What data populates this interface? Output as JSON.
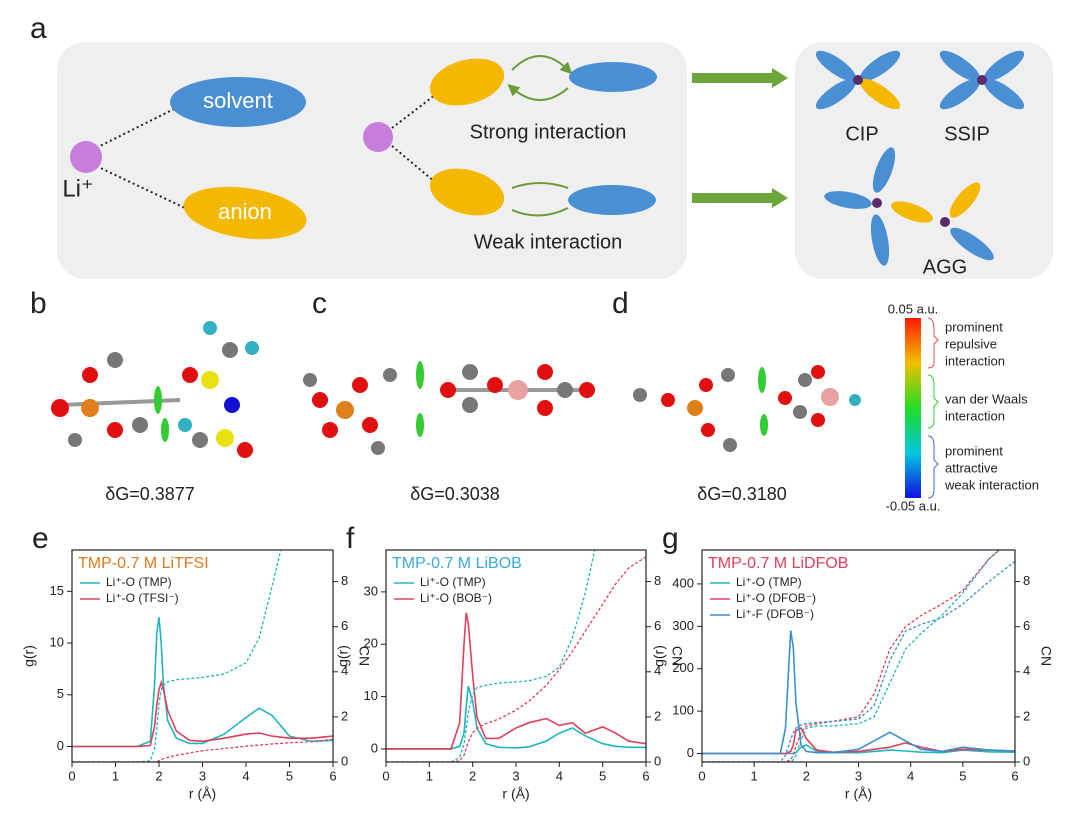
{
  "panel_a": {
    "letter": "a",
    "solvent": "solvent",
    "anion": "anion",
    "li": "Li⁺",
    "strong": "Strong interaction",
    "weak": "Weak interaction",
    "cip": "CIP",
    "ssip": "SSIP",
    "agg": "AGG"
  },
  "panels_bcd": [
    {
      "letter": "b",
      "dg": "δG=0.3877"
    },
    {
      "letter": "c",
      "dg": "δG=0.3038"
    },
    {
      "letter": "d",
      "dg": "δG=0.3180"
    }
  ],
  "colorbar": {
    "top": "0.05 a.u.",
    "bottom": "-0.05 a.u.",
    "repulsive": [
      "prominent",
      "repulsive",
      "interaction"
    ],
    "vdw": [
      "van der Waals",
      "interaction"
    ],
    "attractive": [
      "prominent",
      "attractive",
      "weak interaction"
    ]
  },
  "chart_data": [
    {
      "type": "line",
      "letter": "e",
      "title": "TMP-0.7 M LiTFSI",
      "title_color": "#e07a1f",
      "xlabel": "r (Å)",
      "ylabel": "g(r)",
      "y2label": "CN",
      "x": [
        0,
        1.5,
        1.8,
        1.9,
        1.95,
        2.0,
        2.05,
        2.1,
        2.2,
        2.4,
        2.7,
        3.0,
        3.5,
        4.0,
        4.3,
        4.6,
        5.0,
        5.5,
        6.0
      ],
      "xlim": [
        0,
        6
      ],
      "xticks": [
        0,
        1,
        2,
        3,
        4,
        5,
        6
      ],
      "ylim": [
        -1.5,
        19
      ],
      "yticks": [
        0,
        5,
        10,
        15
      ],
      "y2lim": [
        0,
        9.4
      ],
      "y2ticks": [
        0,
        2,
        4,
        6,
        8
      ],
      "series": [
        {
          "name": "Li⁺-O (TMP)",
          "color": "#1fb5c0",
          "values": [
            0,
            0,
            0.5,
            6,
            11,
            12.5,
            10,
            6,
            2.5,
            0.8,
            0.3,
            0.3,
            1.2,
            2.8,
            3.7,
            3,
            1,
            0.5,
            0.6
          ]
        },
        {
          "name": "Li⁺-O (TFSI⁻)",
          "color": "#e0405a",
          "values": [
            0,
            0,
            0.1,
            2,
            4,
            5.5,
            6.2,
            5.5,
            3.5,
            1.5,
            0.6,
            0.5,
            0.8,
            1.2,
            1.3,
            1,
            0.8,
            0.8,
            1.0
          ]
        },
        {
          "color": "#1fb5c0",
          "axis": "y2",
          "dashed": true,
          "values": [
            0,
            0,
            0.05,
            0.6,
            1.5,
            2.6,
            3.2,
            3.4,
            3.55,
            3.65,
            3.7,
            3.75,
            3.9,
            4.4,
            5.5,
            7.8,
            11,
            null,
            null
          ]
        },
        {
          "color": "#e0405a",
          "axis": "y2",
          "dashed": true,
          "values": [
            0,
            0,
            0,
            0,
            0.02,
            0.05,
            0.1,
            0.15,
            0.2,
            0.3,
            0.4,
            0.5,
            0.6,
            0.7,
            0.75,
            0.8,
            0.85,
            0.9,
            1.0
          ]
        }
      ]
    },
    {
      "type": "line",
      "letter": "f",
      "title": "TMP-0.7 M LiBOB",
      "title_color": "#3aa9dc",
      "xlabel": "r (Å)",
      "ylabel": "g(r)",
      "y2label": "CN",
      "x": [
        0,
        1.5,
        1.7,
        1.8,
        1.85,
        1.9,
        2.0,
        2.1,
        2.3,
        2.6,
        3.0,
        3.3,
        3.7,
        4.0,
        4.3,
        4.6,
        5.0,
        5.3,
        5.6,
        6.0
      ],
      "xlim": [
        0,
        6
      ],
      "xticks": [
        0,
        1,
        2,
        3,
        4,
        5,
        6
      ],
      "ylim": [
        -2.5,
        38
      ],
      "yticks": [
        0,
        10,
        20,
        30
      ],
      "y2lim": [
        0,
        9.4
      ],
      "y2ticks": [
        0,
        2,
        4,
        6,
        8
      ],
      "series": [
        {
          "name": "Li⁺-O (TMP)",
          "color": "#1fb5c0",
          "values": [
            0,
            0,
            0.5,
            3,
            8,
            12,
            9,
            4,
            1,
            0.3,
            0.2,
            0.4,
            1.5,
            3,
            4,
            2.5,
            1,
            0.5,
            0.3,
            0.3
          ]
        },
        {
          "name": "Li⁺-O (BOB⁻)",
          "color": "#e0405a",
          "values": [
            0,
            0,
            5,
            20,
            26,
            24,
            14,
            6,
            2,
            2,
            4,
            5,
            5.8,
            4.5,
            5,
            3,
            4.2,
            3,
            1.5,
            1
          ]
        },
        {
          "color": "#1fb5c0",
          "axis": "y2",
          "dashed": true,
          "values": [
            0,
            0,
            0.2,
            0.8,
            1.5,
            2.2,
            3.0,
            3.3,
            3.4,
            3.5,
            3.55,
            3.6,
            3.8,
            4.2,
            5.5,
            7.5,
            11,
            null,
            null,
            null
          ]
        },
        {
          "color": "#e0405a",
          "axis": "y2",
          "dashed": true,
          "values": [
            0,
            0,
            0.05,
            0.3,
            0.6,
            0.9,
            1.3,
            1.5,
            1.7,
            1.9,
            2.3,
            2.7,
            3.4,
            4.1,
            4.9,
            5.8,
            7,
            7.9,
            8.6,
            9.1
          ]
        }
      ]
    },
    {
      "type": "line",
      "letter": "g",
      "title": "TMP-0.7 M LiDFOB",
      "title_color": "#e0405a",
      "xlabel": "r (Å)",
      "ylabel": "g(r)",
      "y2label": "CN",
      "x": [
        0,
        1.5,
        1.6,
        1.7,
        1.75,
        1.8,
        1.9,
        2.0,
        2.2,
        2.5,
        3.0,
        3.3,
        3.6,
        3.9,
        4.2,
        4.6,
        5.0,
        5.5,
        6.0
      ],
      "xlim": [
        0,
        6
      ],
      "xticks": [
        0,
        1,
        2,
        3,
        4,
        5,
        6
      ],
      "ylim": [
        -20,
        480
      ],
      "yticks": [
        0,
        100,
        200,
        300,
        400
      ],
      "y2lim": [
        0,
        9.4
      ],
      "y2ticks": [
        0,
        2,
        4,
        6,
        8
      ],
      "series": [
        {
          "name": "Li⁺-O (TMP)",
          "color": "#1fb5c0",
          "values": [
            0,
            0,
            0,
            0,
            0,
            2,
            15,
            20,
            5,
            2,
            2,
            5,
            8,
            6,
            3,
            2,
            8,
            4,
            3
          ]
        },
        {
          "name": "Li⁺-O (DFOB⁻)",
          "color": "#e0405a",
          "values": [
            0,
            0,
            0,
            5,
            20,
            55,
            60,
            35,
            8,
            3,
            5,
            10,
            15,
            25,
            15,
            5,
            10,
            8,
            6
          ]
        },
        {
          "name": "Li⁺-F (DFOB⁻)",
          "color": "#3a8fd0",
          "values": [
            0,
            0,
            60,
            290,
            250,
            120,
            20,
            5,
            2,
            2,
            10,
            30,
            50,
            30,
            10,
            5,
            15,
            8,
            6
          ]
        },
        {
          "color": "#1fb5c0",
          "axis": "y2",
          "dashed": true,
          "values": [
            0,
            0,
            0,
            0,
            0.1,
            0.3,
            1,
            1.5,
            1.6,
            1.6,
            1.7,
            2,
            3.5,
            5,
            5.7,
            6.5,
            7.5,
            9,
            10
          ]
        },
        {
          "color": "#e0405a",
          "axis": "y2",
          "dashed": true,
          "values": [
            0,
            0,
            0,
            0.1,
            0.3,
            0.7,
            1.3,
            1.6,
            1.7,
            1.8,
            2,
            3,
            5,
            6,
            6.5,
            7,
            7.6,
            9,
            10
          ]
        },
        {
          "color": "#3a8fd0",
          "axis": "y2",
          "dashed": true,
          "values": [
            0,
            0,
            0.3,
            1.0,
            1.3,
            1.5,
            1.65,
            1.7,
            1.75,
            1.8,
            1.9,
            2.5,
            4.5,
            5.8,
            6.1,
            6.4,
            7,
            8,
            8.9
          ]
        }
      ]
    }
  ]
}
